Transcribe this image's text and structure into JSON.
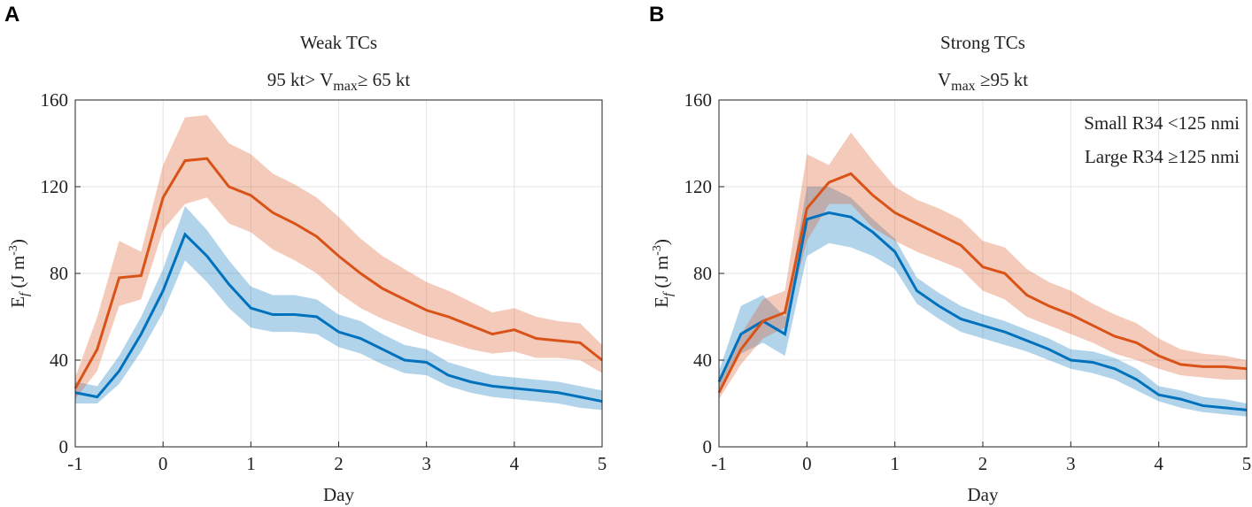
{
  "chart_data": [
    {
      "type": "line",
      "panel": "A",
      "title": "Weak TCs",
      "subtitle": {
        "before": "95 kt> V",
        "sub": "max",
        "after": "≥ 65 kt"
      },
      "ylabel": {
        "main": "E",
        "sub": "f",
        "unit": " (J m",
        "sup": "-3",
        "close": ")"
      },
      "xlabel": "Day",
      "x": [
        -1,
        -0.75,
        -0.5,
        -0.25,
        0,
        0.25,
        0.5,
        0.75,
        1,
        1.25,
        1.5,
        1.75,
        2,
        2.25,
        2.5,
        2.75,
        3,
        3.25,
        3.5,
        3.75,
        4,
        4.25,
        4.5,
        4.75,
        5
      ],
      "xlim": [
        -1,
        5
      ],
      "xticks": [
        -1,
        0,
        1,
        2,
        3,
        4,
        5
      ],
      "ylim": [
        0,
        160
      ],
      "yticks": [
        0,
        40,
        80,
        120,
        160
      ],
      "grid": true,
      "legend": false,
      "series": [
        {
          "color": "#0072BD",
          "values": [
            25,
            23,
            35,
            52,
            72,
            98,
            88,
            75,
            64,
            61,
            61,
            60,
            53,
            50,
            45,
            40,
            39,
            33,
            30,
            28,
            27,
            26,
            25,
            23,
            21
          ],
          "upper": [
            30,
            28,
            42,
            60,
            82,
            111,
            100,
            86,
            74,
            70,
            70,
            68,
            61,
            58,
            52,
            47,
            45,
            39,
            36,
            33,
            32,
            31,
            30,
            28,
            26
          ],
          "lower": [
            20,
            20,
            29,
            44,
            62,
            86,
            76,
            64,
            55,
            53,
            53,
            52,
            46,
            43,
            38,
            34,
            33,
            28,
            25,
            23,
            22,
            21,
            20,
            18,
            17
          ]
        },
        {
          "color": "#D95319",
          "values": [
            27,
            45,
            78,
            79,
            115,
            132,
            133,
            120,
            116,
            108,
            103,
            97,
            88,
            80,
            73,
            68,
            63,
            60,
            56,
            52,
            54,
            50,
            49,
            48,
            40
          ],
          "upper": [
            32,
            60,
            95,
            90,
            130,
            152,
            153,
            140,
            135,
            126,
            121,
            115,
            106,
            96,
            88,
            82,
            76,
            72,
            67,
            62,
            64,
            60,
            58,
            57,
            47
          ],
          "lower": [
            22,
            35,
            65,
            68,
            100,
            112,
            115,
            103,
            99,
            91,
            86,
            80,
            71,
            64,
            59,
            55,
            51,
            48,
            45,
            43,
            44,
            41,
            41,
            40,
            34
          ]
        }
      ]
    },
    {
      "type": "line",
      "panel": "B",
      "title": "Strong TCs",
      "subtitle": {
        "before": "V",
        "sub": "max",
        "after": " ≥95 kt"
      },
      "ylabel": {
        "main": "E",
        "sub": "f",
        "unit": " (J m",
        "sup": "-3",
        "close": ")"
      },
      "xlabel": "Day",
      "x": [
        -1,
        -0.75,
        -0.5,
        -0.25,
        0,
        0.25,
        0.5,
        0.75,
        1,
        1.25,
        1.5,
        1.75,
        2,
        2.25,
        2.5,
        2.75,
        3,
        3.25,
        3.5,
        3.75,
        4,
        4.25,
        4.5,
        4.75,
        5
      ],
      "xlim": [
        -1,
        5
      ],
      "xticks": [
        -1,
        0,
        1,
        2,
        3,
        4,
        5
      ],
      "ylim": [
        0,
        160
      ],
      "yticks": [
        0,
        40,
        80,
        120,
        160
      ],
      "grid": true,
      "legend": "upper right",
      "series": [
        {
          "name": "Small R34 <125 nmi",
          "color": "#0072BD",
          "values": [
            30,
            52,
            58,
            52,
            105,
            108,
            106,
            99,
            90,
            72,
            65,
            59,
            56,
            53,
            49,
            45,
            40,
            39,
            36,
            31,
            24,
            22,
            19,
            18,
            17
          ],
          "upper": [
            35,
            65,
            70,
            60,
            120,
            120,
            115,
            105,
            96,
            78,
            71,
            65,
            61,
            58,
            54,
            50,
            45,
            44,
            41,
            36,
            28,
            26,
            23,
            22,
            20
          ],
          "lower": [
            25,
            43,
            48,
            42,
            88,
            94,
            92,
            88,
            82,
            66,
            59,
            53,
            50,
            47,
            44,
            40,
            36,
            34,
            31,
            26,
            21,
            18,
            16,
            15,
            14
          ]
        },
        {
          "name": "Large R34 ≥125 nmi",
          "color": "#D95319",
          "values": [
            25,
            45,
            58,
            62,
            110,
            122,
            126,
            116,
            108,
            103,
            98,
            93,
            83,
            80,
            70,
            65,
            61,
            56,
            51,
            48,
            42,
            38,
            37,
            37,
            36
          ],
          "upper": [
            30,
            52,
            68,
            72,
            135,
            130,
            145,
            132,
            120,
            114,
            110,
            105,
            95,
            92,
            82,
            76,
            72,
            66,
            61,
            57,
            50,
            45,
            43,
            42,
            40
          ],
          "lower": [
            22,
            38,
            50,
            55,
            95,
            112,
            112,
            101,
            95,
            90,
            86,
            82,
            72,
            68,
            60,
            56,
            52,
            48,
            43,
            40,
            36,
            33,
            32,
            31,
            31
          ]
        }
      ]
    }
  ]
}
